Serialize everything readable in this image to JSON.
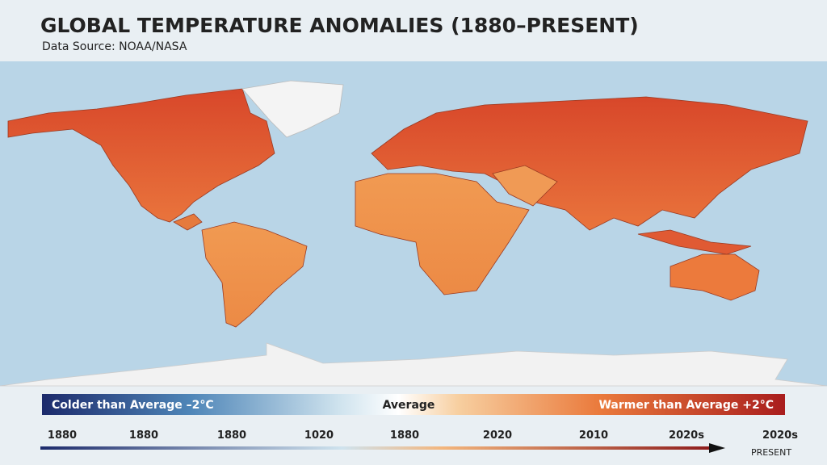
{
  "header": {
    "title": "GLOBAL TEMPERATURE ANOMALIES (1880–PRESENT)",
    "subtitle": "Data Source: NOAA/NASA"
  },
  "legend": {
    "colder": "Colder than Average –2°C",
    "average": "Average",
    "warmer": "Warmer than Average +2°C"
  },
  "timeline": {
    "labels": [
      "1880",
      "1880",
      "1880",
      "1020",
      "1880",
      "2020",
      "2010",
      "2020s",
      "2020s"
    ],
    "end_label": "PRESENT"
  }
}
